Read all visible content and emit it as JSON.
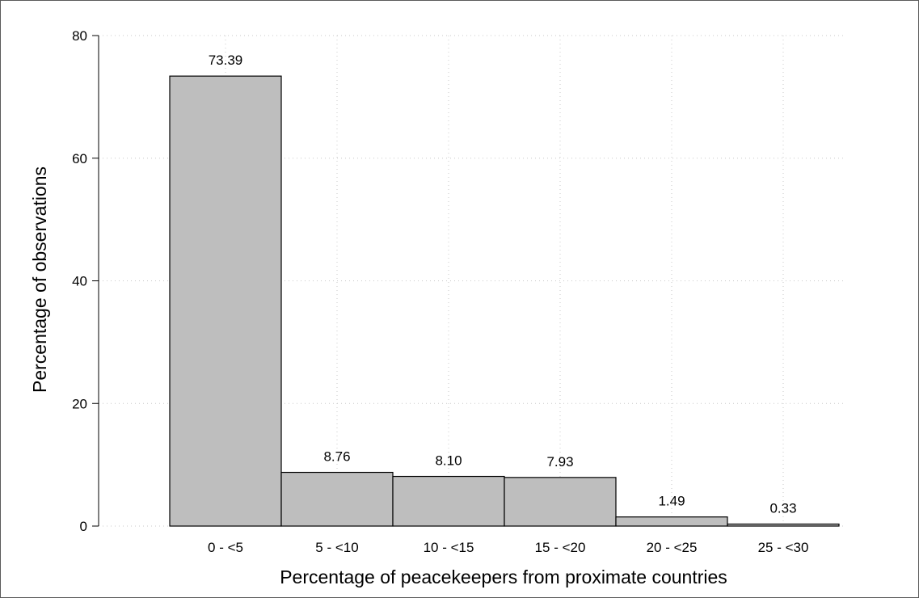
{
  "chart_data": {
    "type": "bar",
    "title": "",
    "xlabel": "Percentage of peacekeepers from proximate countries",
    "ylabel": "Percentage of observations",
    "categories": [
      "0 - <5",
      "5 - <10",
      "10 - <15",
      "15 - <20",
      "20 - <25",
      "25 - <30"
    ],
    "values": [
      73.39,
      8.76,
      8.1,
      7.93,
      1.49,
      0.33
    ],
    "value_labels": [
      "73.39",
      "8.76",
      "8.10",
      "7.93",
      "1.49",
      "0.33"
    ],
    "ylim": [
      0,
      80
    ],
    "yticks": [
      0,
      20,
      40,
      60,
      80
    ],
    "grid": true,
    "legend": "none",
    "colors": {
      "bar_fill": "#bebebe",
      "bar_edge": "#000000",
      "grid": "#c8c8c8"
    }
  }
}
